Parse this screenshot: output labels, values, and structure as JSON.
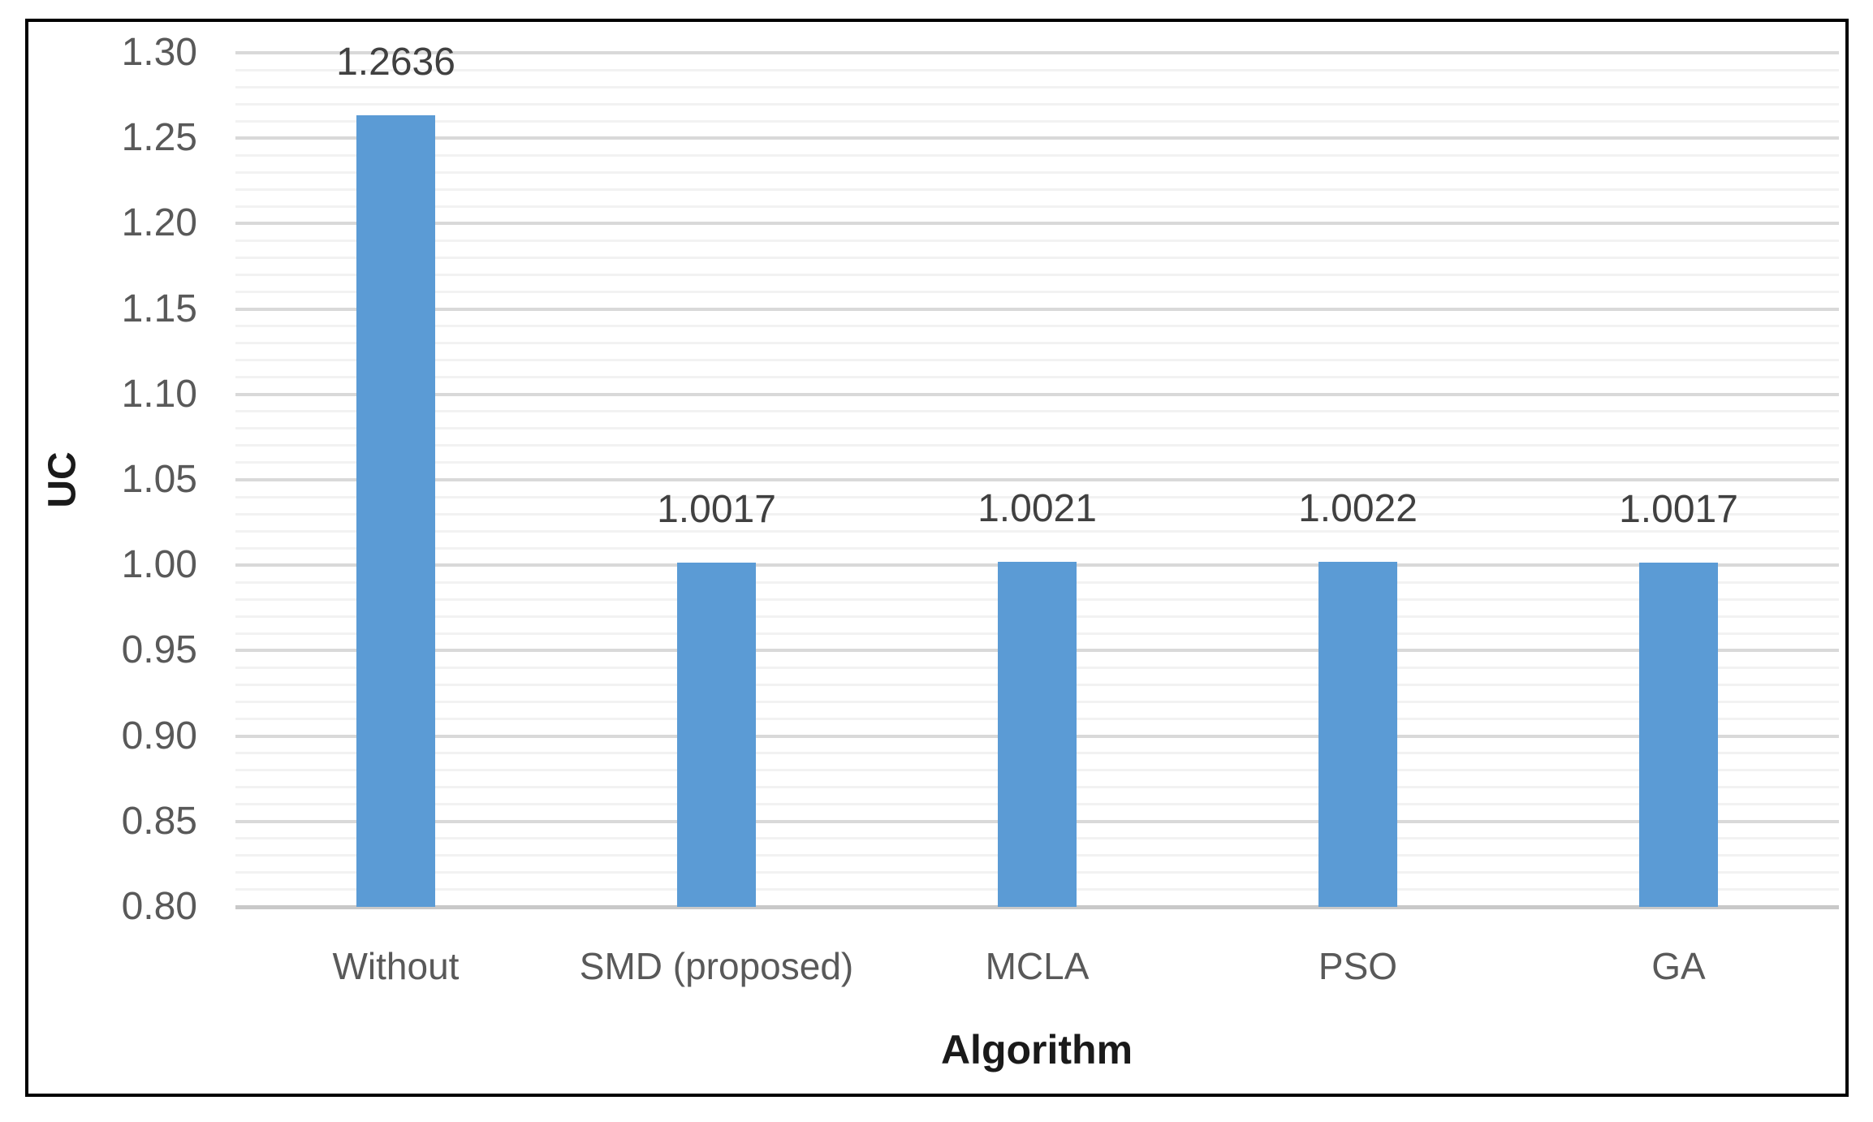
{
  "chart_data": {
    "type": "bar",
    "title": "",
    "xlabel": "Algorithm",
    "ylabel": "UC",
    "categories": [
      "Without",
      "SMD (proposed)",
      "MCLA",
      "PSO",
      "GA"
    ],
    "values": [
      1.2636,
      1.0017,
      1.0021,
      1.0022,
      1.0017
    ],
    "data_labels": [
      "1.2636",
      "1.0017",
      "1.0021",
      "1.0022",
      "1.0017"
    ],
    "ylim": [
      0.8,
      1.3
    ],
    "bar_baseline": 0.8,
    "y_major_step": 0.05,
    "y_minor_step": 0.01,
    "y_tick_labels": [
      "0.80",
      "0.85",
      "0.90",
      "0.95",
      "1.00",
      "1.05",
      "1.10",
      "1.15",
      "1.20",
      "1.25",
      "1.30"
    ],
    "grid": {
      "horizontal_major": true,
      "horizontal_minor": true,
      "vertical": false
    },
    "legend": "none",
    "colors": {
      "bar": "#5B9BD5",
      "major_gridline": "#D9D9D9",
      "minor_gridline": "#F2F2F2",
      "axis_line": "#C9C9C9",
      "tick_label": "#595959",
      "category_label": "#595959",
      "data_label": "#404040",
      "axis_title": "#1A1A1A",
      "figure_border": "#000000",
      "background": "#FFFFFF"
    }
  }
}
